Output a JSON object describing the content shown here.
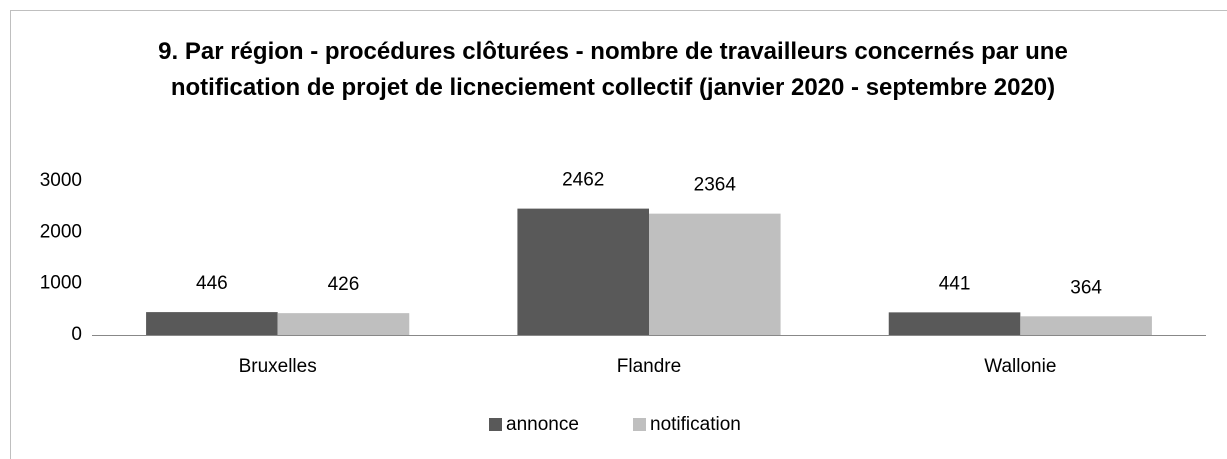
{
  "chart_data": {
    "type": "bar",
    "title": "9. Par région - procédures clôturées - nombre de travailleurs concernés par une notification de projet de licneciement collectif (janvier 2020 - septembre 2020)",
    "categories": [
      "Bruxelles",
      "Flandre",
      "Wallonie"
    ],
    "series": [
      {
        "name": "annonce",
        "color": "#595959",
        "values": [
          446,
          2462,
          441
        ]
      },
      {
        "name": "notification",
        "color": "#bfbfbf",
        "values": [
          426,
          2364,
          364
        ]
      }
    ],
    "ylim": [
      0,
      3000
    ],
    "yticks": [
      0,
      1000,
      2000,
      3000
    ],
    "grid": false,
    "legend": "bottom"
  }
}
